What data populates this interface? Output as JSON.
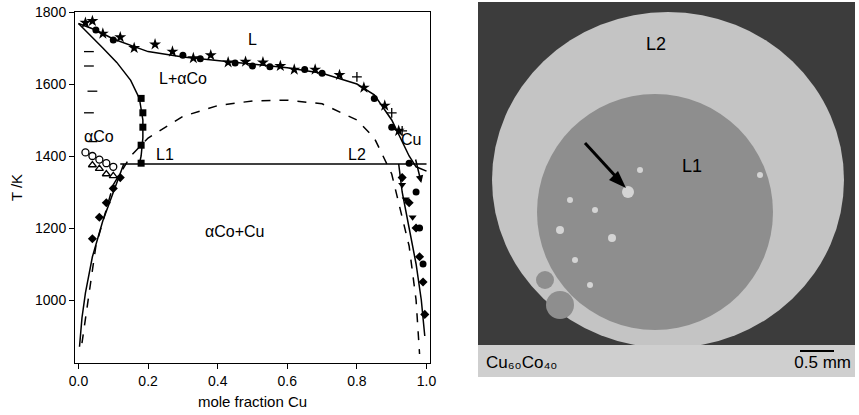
{
  "chart_data": {
    "type": "line",
    "x_label": "mole fraction Cu",
    "y_label": "T /K",
    "xlim": [
      -0.01,
      1.01
    ],
    "ylim": [
      825,
      1800
    ],
    "xticks": [
      {
        "value": 0,
        "label": "0.0"
      },
      0.2,
      0.4,
      0.6,
      0.8,
      {
        "value": 1,
        "label": "1.0"
      }
    ],
    "yticks": [
      1000,
      1200,
      1400,
      1600,
      1800
    ],
    "grid": false,
    "series": [
      {
        "type": "line",
        "line_style": "solid",
        "color": "#000000",
        "x": [
          0,
          0.05,
          0.1,
          0.2,
          0.3,
          0.4,
          0.5,
          0.6,
          0.7,
          0.8,
          0.85,
          0.9,
          0.95,
          0.97,
          1.0
        ],
        "values": [
          1768,
          1750,
          1725,
          1690,
          1675,
          1665,
          1655,
          1645,
          1630,
          1600,
          1570,
          1500,
          1400,
          1370,
          1358
        ]
      },
      {
        "type": "line",
        "line_style": "solid",
        "color": "#000000",
        "x": [
          0,
          0.03,
          0.07,
          0.11,
          0.15,
          0.175,
          0.185,
          0.185,
          0.18,
          0.175
        ],
        "values": [
          1768,
          1740,
          1700,
          1660,
          1610,
          1560,
          1500,
          1450,
          1400,
          1378
        ]
      },
      {
        "type": "line",
        "line_style": "solid",
        "color": "#000000",
        "x": [
          0.13,
          0.1,
          0.07,
          0.04,
          0.02,
          0.01,
          0.003
        ],
        "values": [
          1378,
          1300,
          1220,
          1120,
          1020,
          950,
          870
        ]
      },
      {
        "type": "line",
        "line_style": "solid",
        "color": "#000000",
        "x": [
          0.92,
          0.93,
          0.95,
          0.97,
          0.985,
          0.995
        ],
        "values": [
          1378,
          1300,
          1200,
          1100,
          1000,
          900
        ]
      },
      {
        "type": "line",
        "line_style": "solid",
        "color": "#000000",
        "x": [
          0.12,
          1.0
        ],
        "values": [
          1378,
          1378
        ]
      },
      {
        "type": "line",
        "line_style": "dashed",
        "color": "#000000",
        "x": [
          0.01,
          0.05,
          0.1,
          0.15,
          0.2,
          0.3,
          0.4,
          0.5,
          0.6,
          0.7,
          0.8,
          0.85,
          0.9,
          0.95,
          0.97,
          0.98
        ],
        "values": [
          880,
          1150,
          1320,
          1400,
          1450,
          1510,
          1540,
          1553,
          1555,
          1545,
          1500,
          1450,
          1350,
          1150,
          1000,
          850
        ]
      },
      {
        "type": "scatter",
        "marker": "star",
        "color": "#000000",
        "x": [
          0.02,
          0.04,
          0.07,
          0.12,
          0.16,
          0.22,
          0.27,
          0.33,
          0.38,
          0.43,
          0.48,
          0.53,
          0.58,
          0.62,
          0.68,
          0.75,
          0.82,
          0.88,
          0.92
        ],
        "values": [
          1770,
          1775,
          1740,
          1730,
          1700,
          1710,
          1690,
          1672,
          1680,
          1660,
          1662,
          1660,
          1650,
          1640,
          1640,
          1625,
          1590,
          1540,
          1470
        ]
      },
      {
        "type": "scatter",
        "marker": "circle",
        "color": "#000000",
        "x": [
          0.05,
          0.1,
          0.3,
          0.35,
          0.45,
          0.5,
          0.55,
          0.65,
          0.7,
          0.85,
          0.9,
          0.95,
          0.97,
          0.98,
          0.99
        ],
        "values": [
          1750,
          1722,
          1680,
          1670,
          1658,
          1650,
          1648,
          1640,
          1630,
          1560,
          1480,
          1380,
          1300,
          1200,
          1100
        ]
      },
      {
        "type": "scatter",
        "marker": "square",
        "color": "#000000",
        "x": [
          0.18,
          0.18,
          0.185,
          0.185,
          0.18
        ],
        "values": [
          1380,
          1430,
          1480,
          1520,
          1560
        ]
      },
      {
        "type": "scatter",
        "marker": "diamond",
        "color": "#000000",
        "x": [
          0.04,
          0.06,
          0.08,
          0.1,
          0.12,
          0.93,
          0.95,
          0.97,
          0.98,
          0.99,
          0.995
        ],
        "values": [
          1170,
          1230,
          1270,
          1310,
          1340,
          1340,
          1270,
          1200,
          1120,
          1050,
          960
        ]
      },
      {
        "type": "scatter",
        "marker": "triangle-down",
        "color": "#000000",
        "x": [
          0.93,
          0.94,
          0.96
        ],
        "values": [
          1320,
          1280,
          1230
        ]
      },
      {
        "type": "scatter",
        "marker": "circle-open",
        "color": "#000000",
        "x": [
          0.02,
          0.04,
          0.06,
          0.08,
          0.1
        ],
        "values": [
          1410,
          1400,
          1390,
          1380,
          1370
        ]
      },
      {
        "type": "scatter",
        "marker": "triangle-up-open",
        "color": "#000000",
        "x": [
          0.04,
          0.06,
          0.08,
          0.1
        ],
        "values": [
          1375,
          1365,
          1350,
          1345
        ]
      },
      {
        "type": "scatter",
        "marker": "dash",
        "color": "#000000",
        "x": [
          0.03,
          0.03,
          0.04,
          0.03,
          0.04
        ],
        "values": [
          1690,
          1650,
          1580,
          1520,
          1440
        ]
      },
      {
        "type": "scatter",
        "marker": "plus",
        "color": "#000000",
        "x": [
          0.8,
          0.9,
          0.93
        ],
        "values": [
          1620,
          1520,
          1470
        ]
      }
    ],
    "annotations": [
      {
        "text": "L",
        "x": 0.5,
        "y": 1725
      },
      {
        "text": "L+αCo",
        "x": 0.3,
        "y": 1615
      },
      {
        "text": "αCo",
        "x": 0.06,
        "y": 1455
      },
      {
        "text": "L1",
        "x": 0.25,
        "y": 1405
      },
      {
        "text": "L2",
        "x": 0.8,
        "y": 1405
      },
      {
        "text": "Cu",
        "x": 0.955,
        "y": 1445,
        "arrow_to": [
          0.985,
          1325
        ]
      },
      {
        "text": "αCo+Cu",
        "x": 0.45,
        "y": 1190
      }
    ]
  },
  "micrograph": {
    "labels": [
      "L2",
      "L1"
    ],
    "sample": "Cu₆₀Co₄₀",
    "scale_bar": "0.5 mm"
  }
}
